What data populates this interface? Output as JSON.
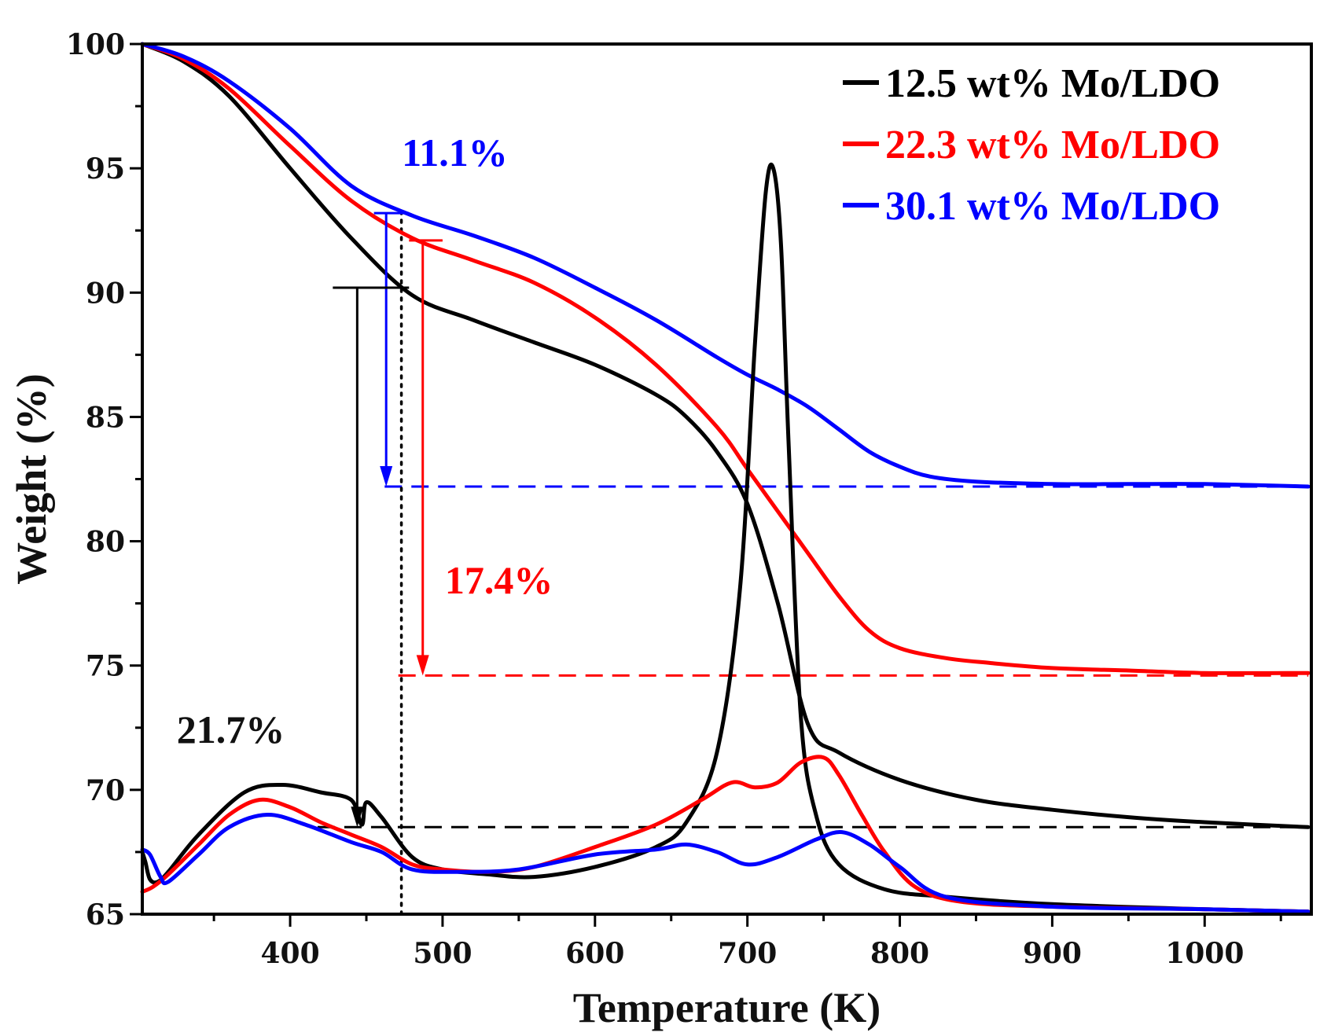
{
  "chart_data": {
    "type": "line",
    "xlabel": "Temperature (K)",
    "ylabel": "Weight (%)",
    "xlim": [
      303,
      1070
    ],
    "ylim": [
      65,
      100
    ],
    "x_ticks": [
      400,
      500,
      600,
      700,
      800,
      900,
      1000
    ],
    "y_ticks": [
      65,
      70,
      75,
      80,
      85,
      90,
      95,
      100
    ],
    "grid": false,
    "legend_position": "top-right",
    "legend": [
      {
        "name": "12.5 wt% Mo/LDO",
        "color": "#000000"
      },
      {
        "name": "22.3 wt% Mo/LDO",
        "color": "#ff0000"
      },
      {
        "name": "30.1 wt% Mo/LDO",
        "color": "#0000ff"
      }
    ],
    "series": [
      {
        "name": "12.5 wt% Mo/LDO",
        "kind": "TG",
        "color": "#000000",
        "x": [
          303,
          330,
          360,
          400,
          440,
          480,
          520,
          560,
          600,
          640,
          660,
          680,
          700,
          720,
          740,
          760,
          800,
          850,
          900,
          950,
          1000,
          1068
        ],
        "y": [
          100,
          99.3,
          97.9,
          95.0,
          92.2,
          89.9,
          88.9,
          88.0,
          87.1,
          85.9,
          85.0,
          83.6,
          81.5,
          77.5,
          72.6,
          71.5,
          70.4,
          69.6,
          69.2,
          68.9,
          68.7,
          68.5
        ]
      },
      {
        "name": "22.3 wt% Mo/LDO",
        "kind": "TG",
        "color": "#ff0000",
        "x": [
          303,
          330,
          360,
          400,
          440,
          480,
          520,
          560,
          600,
          640,
          680,
          700,
          720,
          740,
          760,
          780,
          800,
          830,
          860,
          900,
          950,
          1000,
          1068
        ],
        "y": [
          100,
          99.4,
          98.2,
          95.9,
          93.7,
          92.2,
          91.3,
          90.4,
          89.0,
          87.1,
          84.6,
          82.9,
          81.2,
          79.5,
          77.8,
          76.4,
          75.7,
          75.3,
          75.1,
          74.9,
          74.8,
          74.7,
          74.7
        ]
      },
      {
        "name": "30.1 wt% Mo/LDO",
        "kind": "TG",
        "color": "#0000ff",
        "x": [
          303,
          330,
          360,
          400,
          440,
          480,
          520,
          560,
          600,
          640,
          680,
          700,
          720,
          740,
          760,
          780,
          800,
          820,
          850,
          900,
          950,
          1000,
          1068
        ],
        "y": [
          100,
          99.5,
          98.5,
          96.6,
          94.3,
          93.1,
          92.3,
          91.4,
          90.2,
          88.9,
          87.4,
          86.7,
          86.1,
          85.4,
          84.5,
          83.6,
          83.0,
          82.6,
          82.4,
          82.3,
          82.3,
          82.3,
          82.2
        ]
      },
      {
        "name": "12.5 wt% Mo/LDO",
        "kind": "DTG",
        "color": "#000000",
        "x": [
          303,
          305,
          308,
          313,
          320,
          340,
          370,
          395,
          420,
          440,
          447,
          450,
          460,
          480,
          500,
          530,
          560,
          600,
          640,
          660,
          680,
          695,
          705,
          712,
          717,
          722,
          727,
          735,
          745,
          760,
          790,
          830,
          900,
          1000,
          1068
        ],
        "y": [
          67.5,
          67.1,
          66.4,
          66.3,
          66.7,
          68.2,
          69.9,
          70.2,
          69.9,
          69.6,
          68.6,
          69.5,
          68.9,
          67.3,
          66.8,
          66.6,
          66.5,
          66.9,
          67.7,
          68.7,
          71.5,
          78.0,
          88.0,
          94.0,
          95.0,
          92.0,
          84.0,
          73.0,
          69.0,
          67.0,
          66.0,
          65.7,
          65.4,
          65.2,
          65.1
        ]
      },
      {
        "name": "22.3 wt% Mo/LDO",
        "kind": "DTG",
        "color": "#ff0000",
        "x": [
          303,
          310,
          320,
          340,
          360,
          380,
          400,
          420,
          440,
          460,
          480,
          500,
          530,
          560,
          600,
          640,
          670,
          690,
          705,
          720,
          735,
          750,
          760,
          775,
          790,
          810,
          840,
          900,
          1000,
          1068
        ],
        "y": [
          65.9,
          66.1,
          66.6,
          67.8,
          69.0,
          69.6,
          69.3,
          68.7,
          68.2,
          67.7,
          67.0,
          66.8,
          66.7,
          66.9,
          67.7,
          68.6,
          69.6,
          70.3,
          70.1,
          70.3,
          71.1,
          71.3,
          70.6,
          69.0,
          67.5,
          66.1,
          65.5,
          65.3,
          65.2,
          65.1
        ]
      },
      {
        "name": "30.1 wt% Mo/LDO",
        "kind": "DTG",
        "color": "#0000ff",
        "x": [
          303,
          308,
          315,
          320,
          340,
          360,
          385,
          410,
          440,
          460,
          480,
          510,
          550,
          600,
          640,
          660,
          680,
          700,
          720,
          745,
          762,
          780,
          800,
          830,
          900,
          1000,
          1068
        ],
        "y": [
          67.6,
          67.4,
          66.5,
          66.3,
          67.4,
          68.5,
          69.0,
          68.6,
          67.9,
          67.5,
          66.8,
          66.7,
          66.8,
          67.4,
          67.6,
          67.8,
          67.5,
          67.0,
          67.3,
          68.0,
          68.3,
          67.8,
          66.9,
          65.7,
          65.3,
          65.2,
          65.1
        ]
      }
    ],
    "reference_lines": {
      "dashed_horizontal": [
        {
          "y": 82.2,
          "x_from": 462,
          "x_to": 1068,
          "color": "#0000ff"
        },
        {
          "y": 74.6,
          "x_from": 471,
          "x_to": 1068,
          "color": "#ff0000"
        },
        {
          "y": 68.5,
          "x_from": 418,
          "x_to": 1068,
          "color": "#000000"
        }
      ],
      "dotted_vertical": {
        "x": 473,
        "y_from": 65,
        "y_to": 93.3,
        "color": "#000000"
      }
    },
    "arrows": [
      {
        "x": 463,
        "y_from": 93.2,
        "y_to": 82.2,
        "cap_x": [
          455,
          478
        ],
        "color": "#0000ff"
      },
      {
        "x": 487,
        "y_from": 92.1,
        "y_to": 74.6,
        "cap_x": [
          478,
          500
        ],
        "color": "#ff0000"
      },
      {
        "x": 444,
        "y_from": 90.2,
        "y_to": 68.5,
        "cap_x": [
          428,
          478
        ],
        "color": "#000000"
      }
    ],
    "annotations": [
      {
        "text": "11.1%",
        "x": 508,
        "y": 95.1,
        "color": "#0000ff"
      },
      {
        "text": "17.4%",
        "x": 537,
        "y": 77.9,
        "color": "#ff0000"
      },
      {
        "text": "21.7%",
        "x": 361,
        "y": 71.9,
        "color": "#111111"
      }
    ]
  }
}
